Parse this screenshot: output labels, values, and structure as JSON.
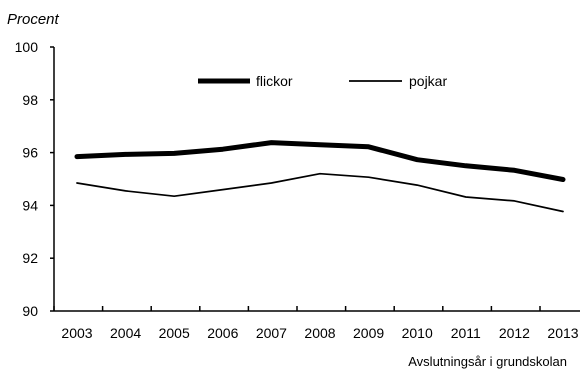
{
  "chart_data": {
    "type": "line",
    "title": "",
    "ylabel": "Procent",
    "xlabel": "Avslutningsår i grundskolan",
    "categories": [
      "2003",
      "2004",
      "2005",
      "2006",
      "2007",
      "2008",
      "2009",
      "2010",
      "2011",
      "2012",
      "2013"
    ],
    "ylim": [
      90,
      100
    ],
    "yticks": [
      90,
      92,
      94,
      96,
      98,
      100
    ],
    "grid": false,
    "legend": "top-center",
    "series": [
      {
        "name": "flickor",
        "values": [
          95.85,
          95.93,
          95.97,
          96.13,
          96.38,
          96.3,
          96.22,
          95.73,
          95.5,
          95.33,
          94.98
        ],
        "color": "#000000",
        "style": "thick"
      },
      {
        "name": "pojkar",
        "values": [
          94.85,
          94.55,
          94.35,
          94.6,
          94.85,
          95.2,
          95.07,
          94.77,
          94.32,
          94.17,
          93.77
        ],
        "color": "#000000",
        "style": "thin"
      }
    ]
  }
}
